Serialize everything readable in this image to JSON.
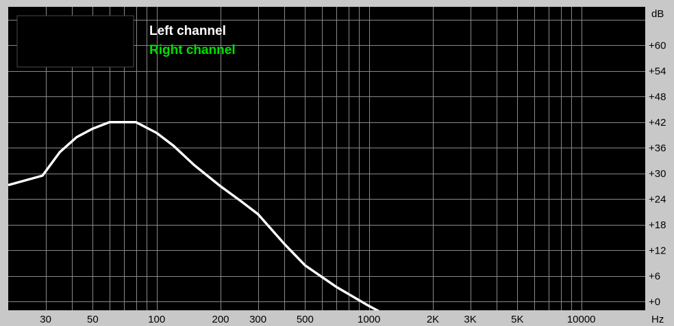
{
  "chart_data": {
    "type": "line",
    "x_scale": "log",
    "y_unit": "dB",
    "x_unit": "Hz",
    "xlim": [
      20,
      20000
    ],
    "ylim": [
      -2,
      69
    ],
    "x_ticks": [
      {
        "value": 30,
        "label": "30"
      },
      {
        "value": 50,
        "label": "50"
      },
      {
        "value": 100,
        "label": "100"
      },
      {
        "value": 200,
        "label": "200"
      },
      {
        "value": 300,
        "label": "300"
      },
      {
        "value": 500,
        "label": "500"
      },
      {
        "value": 1000,
        "label": "1000"
      },
      {
        "value": 2000,
        "label": "2K"
      },
      {
        "value": 3000,
        "label": "3K"
      },
      {
        "value": 5000,
        "label": "5K"
      },
      {
        "value": 10000,
        "label": "10000"
      }
    ],
    "y_ticks": [
      {
        "value": 60,
        "label": "+60"
      },
      {
        "value": 54,
        "label": "+54"
      },
      {
        "value": 48,
        "label": "+48"
      },
      {
        "value": 42,
        "label": "+42"
      },
      {
        "value": 36,
        "label": "+36"
      },
      {
        "value": 30,
        "label": "+30"
      },
      {
        "value": 24,
        "label": "+24"
      },
      {
        "value": 18,
        "label": "+18"
      },
      {
        "value": 12,
        "label": "+12"
      },
      {
        "value": 6,
        "label": "+6"
      },
      {
        "value": 0,
        "label": "+0"
      }
    ],
    "grid": true,
    "background": "#000000",
    "grid_color": "#8a8a8a",
    "legend": {
      "placement": "top-left",
      "entries": [
        {
          "label": "Left channel",
          "color": "#ffffff"
        },
        {
          "label": "Right channel",
          "color": "#00e000"
        }
      ]
    },
    "series": [
      {
        "name": "Left channel",
        "color": "#ffffff",
        "x": [
          20,
          29,
          35,
          42,
          50,
          60,
          70,
          80,
          100,
          120,
          150,
          200,
          250,
          300,
          400,
          500,
          700,
          1000,
          1300
        ],
        "y": [
          27.3,
          29.5,
          35,
          38.5,
          40.5,
          42,
          42,
          42,
          39.5,
          36.5,
          32,
          27,
          23.5,
          20.5,
          13.5,
          8.5,
          3.5,
          -1,
          -4
        ]
      }
    ]
  },
  "axis": {
    "y_unit_label": "dB",
    "x_unit_label": "Hz"
  },
  "legend": {
    "left_label": "Left channel",
    "right_label": "Right channel"
  }
}
